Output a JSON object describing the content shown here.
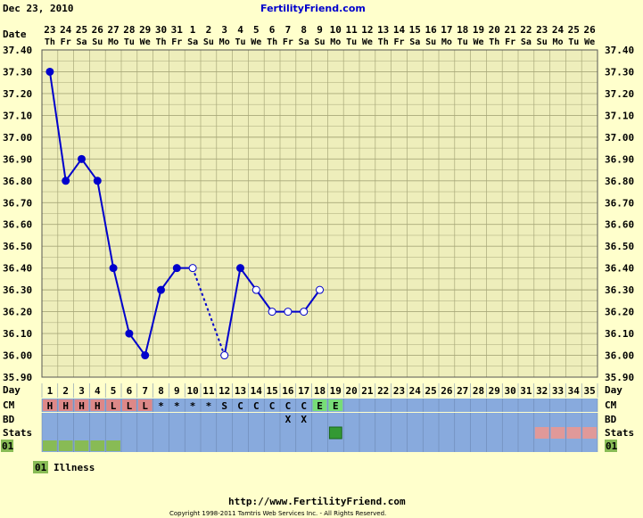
{
  "header": {
    "date": "Dec 23, 2010",
    "site": "FertilityFriend.com"
  },
  "row_labels": {
    "date": "Date",
    "day": "Day",
    "cm": "CM",
    "bd": "BD",
    "stats": "Stats",
    "code": "01"
  },
  "legend": {
    "code": "01",
    "label": "Illness"
  },
  "footer": {
    "url": "http://www.FertilityFriend.com",
    "copyright": "Copyright 1998-2011 Tamtris Web Services Inc. - All Rights Reserved."
  },
  "colors": {
    "background": "#FFFFCC",
    "chart_bg": "#EEEEBB",
    "grid": "#A8A87A",
    "line": "#0000CC",
    "row_bg": "#88AADD",
    "menses": "#DD8888",
    "egg_white": "#77DD77",
    "ovulation": "#339933",
    "stats_pink": "#E09999",
    "illness": "#88BB55"
  },
  "chart_data": {
    "type": "line",
    "ylim": [
      35.9,
      37.4
    ],
    "yticks": [
      "37.40",
      "37.30",
      "37.20",
      "37.10",
      "37.00",
      "36.90",
      "36.80",
      "36.70",
      "36.60",
      "36.50",
      "36.40",
      "36.30",
      "36.20",
      "36.10",
      "36.00",
      "35.90"
    ],
    "dates": [
      "23",
      "24",
      "25",
      "26",
      "27",
      "28",
      "29",
      "30",
      "31",
      "1",
      "2",
      "3",
      "4",
      "5",
      "6",
      "7",
      "8",
      "9",
      "10",
      "11",
      "12",
      "13",
      "14",
      "15",
      "16",
      "17",
      "18",
      "19",
      "20",
      "21",
      "22",
      "23",
      "24",
      "25",
      "26"
    ],
    "weekdays": [
      "Th",
      "Fr",
      "Sa",
      "Su",
      "Mo",
      "Tu",
      "We",
      "Th",
      "Fr",
      "Sa",
      "Su",
      "Mo",
      "Tu",
      "We",
      "Th",
      "Fr",
      "Sa",
      "Su",
      "Mo",
      "Tu",
      "We",
      "Th",
      "Fr",
      "Sa",
      "Su",
      "Mo",
      "Tu",
      "We",
      "Th",
      "Fr",
      "Sa",
      "Su",
      "Mo",
      "Tu",
      "We"
    ],
    "days": [
      "1",
      "2",
      "3",
      "4",
      "5",
      "6",
      "7",
      "8",
      "9",
      "10",
      "11",
      "12",
      "13",
      "14",
      "15",
      "16",
      "17",
      "18",
      "19",
      "20",
      "21",
      "22",
      "23",
      "24",
      "25",
      "26",
      "27",
      "28",
      "29",
      "30",
      "31",
      "32",
      "33",
      "34",
      "35"
    ],
    "temperatures": [
      {
        "day": 1,
        "temp": 37.3,
        "open": false
      },
      {
        "day": 2,
        "temp": 36.8,
        "open": false
      },
      {
        "day": 3,
        "temp": 36.9,
        "open": false
      },
      {
        "day": 4,
        "temp": 36.8,
        "open": false
      },
      {
        "day": 5,
        "temp": 36.4,
        "open": false
      },
      {
        "day": 6,
        "temp": 36.1,
        "open": false
      },
      {
        "day": 7,
        "temp": 36.0,
        "open": false
      },
      {
        "day": 8,
        "temp": 36.3,
        "open": false
      },
      {
        "day": 9,
        "temp": 36.4,
        "open": false
      },
      {
        "day": 10,
        "temp": 36.4,
        "open": true
      },
      {
        "day": 12,
        "temp": 36.0,
        "open": true
      },
      {
        "day": 13,
        "temp": 36.4,
        "open": false
      },
      {
        "day": 14,
        "temp": 36.3,
        "open": true
      },
      {
        "day": 15,
        "temp": 36.2,
        "open": true
      },
      {
        "day": 16,
        "temp": 36.2,
        "open": true
      },
      {
        "day": 17,
        "temp": 36.2,
        "open": true
      },
      {
        "day": 18,
        "temp": 36.3,
        "open": true
      }
    ],
    "cm": [
      "H",
      "H",
      "H",
      "H",
      "L",
      "L",
      "L",
      "*",
      "*",
      "*",
      "*",
      "S",
      "C",
      "C",
      "C",
      "C",
      "C",
      "E",
      "E",
      "",
      "",
      "",
      "",
      "",
      "",
      "",
      "",
      "",
      "",
      "",
      "",
      "",
      "",
      "",
      ""
    ],
    "bd": [
      "",
      "",
      "",
      "",
      "",
      "",
      "",
      "",
      "",
      "",
      "",
      "",
      "",
      "",
      "",
      "X",
      "X",
      "",
      "",
      "",
      "",
      "",
      "",
      "",
      "",
      "",
      "",
      "",
      "",
      "",
      "",
      "",
      "",
      "",
      ""
    ],
    "stats": [
      "",
      "",
      "",
      "",
      "",
      "",
      "",
      "",
      "",
      "",
      "",
      "",
      "",
      "",
      "",
      "",
      "",
      "",
      "ovulation",
      "",
      "",
      "",
      "",
      "",
      "",
      "",
      "",
      "",
      "",
      "",
      "",
      "pink",
      "pink",
      "pink",
      "pink"
    ],
    "illness_days": [
      1,
      2,
      3,
      4,
      5
    ]
  }
}
